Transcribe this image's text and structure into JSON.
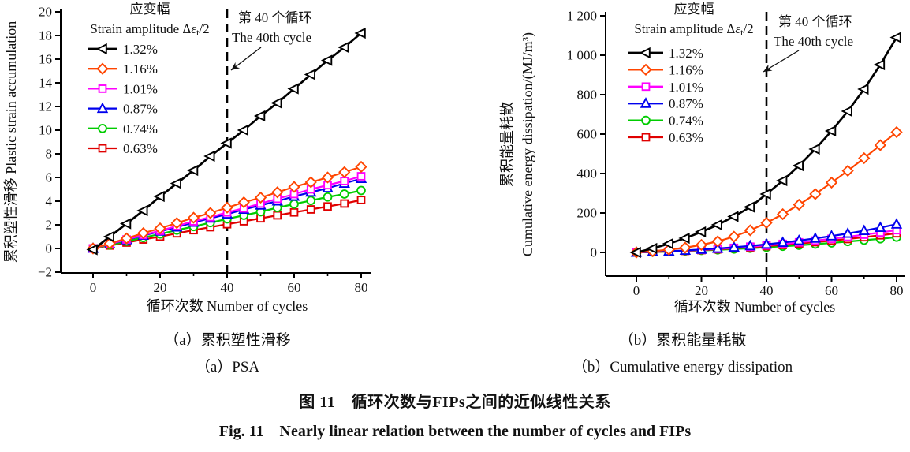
{
  "figure": {
    "caption_zh": "图 11　循环次数与FIPs之间的近似线性关系",
    "caption_en": "Fig. 11　Nearly linear relation between the number of cycles and FIPs"
  },
  "legend": {
    "title_zh": "应变幅",
    "subtitle_pre": "Strain amplitude Δ",
    "subtitle_epsilon": "ε",
    "subtitle_subscript": "t",
    "subtitle_suffix": "/2",
    "entries": [
      "1.32%",
      "1.16%",
      "1.01%",
      "0.87%",
      "0.74%",
      "0.63%"
    ]
  },
  "annotation": {
    "line_label_zh": "第 40 个循环",
    "line_label_en": "The 40th cycle",
    "cycle": 40
  },
  "colors": {
    "s132": "#000000",
    "s116": "#ff4500",
    "s101": "#ff00ff",
    "s087": "#0000ee",
    "s074": "#00cc00",
    "s063": "#e00000"
  },
  "chart_data": [
    {
      "type": "line",
      "panel": "a",
      "caption_zh": "（a）累积塑性滑移",
      "caption_en": "（a）PSA",
      "xlabel": "循环次数 Number of cycles",
      "ylabel_lines": [
        "累积塑性滑移 Plastic strain accumulation"
      ],
      "xlim": [
        -10,
        83
      ],
      "ylim": [
        -2.2,
        20.4
      ],
      "xticks": [
        0,
        20,
        40,
        60,
        80
      ],
      "xminor": [
        10,
        30,
        50,
        70
      ],
      "yticks": [
        -2,
        0,
        2,
        4,
        6,
        8,
        10,
        12,
        14,
        16,
        18,
        20
      ],
      "ytick_labels": [
        "−2",
        "0",
        "2",
        "4",
        "6",
        "8",
        "10",
        "12",
        "14",
        "16",
        "18",
        "20"
      ],
      "grid": false,
      "legend_position": "upper-left",
      "annotation_x": 40,
      "x": [
        0,
        5,
        10,
        15,
        20,
        25,
        30,
        35,
        40,
        45,
        50,
        55,
        60,
        65,
        70,
        75,
        80
      ],
      "series": [
        {
          "name": "1.32%",
          "color": "#000000",
          "marker": "triangle-left",
          "values": [
            -0.1,
            1.0,
            2.1,
            3.2,
            4.4,
            5.5,
            6.6,
            7.8,
            8.9,
            10.0,
            11.2,
            12.3,
            13.5,
            14.7,
            15.9,
            17.0,
            18.2
          ]
        },
        {
          "name": "1.16%",
          "color": "#ff4500",
          "marker": "diamond",
          "values": [
            0,
            0.42,
            0.85,
            1.3,
            1.7,
            2.15,
            2.6,
            3.0,
            3.45,
            3.9,
            4.3,
            4.75,
            5.2,
            5.6,
            6.0,
            6.45,
            6.9
          ]
        },
        {
          "name": "1.01%",
          "color": "#ff00ff",
          "marker": "square",
          "values": [
            0,
            0.38,
            0.76,
            1.14,
            1.5,
            1.9,
            2.3,
            2.65,
            3.05,
            3.4,
            3.8,
            4.2,
            4.6,
            5.0,
            5.35,
            5.7,
            6.1
          ]
        },
        {
          "name": "0.87%",
          "color": "#0000ee",
          "marker": "triangle-up",
          "values": [
            0,
            0.37,
            0.73,
            1.1,
            1.45,
            1.8,
            2.2,
            2.55,
            2.9,
            3.3,
            3.65,
            4.0,
            4.4,
            4.75,
            5.1,
            5.5,
            5.9
          ]
        },
        {
          "name": "0.74%",
          "color": "#00cc00",
          "marker": "circle",
          "values": [
            0,
            0.3,
            0.6,
            0.92,
            1.22,
            1.55,
            1.85,
            2.18,
            2.5,
            2.8,
            3.1,
            3.45,
            3.75,
            4.05,
            4.35,
            4.6,
            4.9
          ]
        },
        {
          "name": "0.63%",
          "color": "#e00000",
          "marker": "square",
          "values": [
            0,
            0.25,
            0.5,
            0.76,
            1.0,
            1.28,
            1.55,
            1.8,
            2.05,
            2.3,
            2.55,
            2.8,
            3.05,
            3.3,
            3.55,
            3.8,
            4.1
          ]
        }
      ],
      "draw_order": [
        5,
        4,
        3,
        2,
        1,
        0
      ]
    },
    {
      "type": "line",
      "panel": "b",
      "caption_zh": "（b）累积能量耗散",
      "caption_en": "（b）Cumulative energy dissipation",
      "xlabel": "循环次数 Number of cycles",
      "ylabel_lines": [
        "累积能量耗散",
        "Cumulative energy dissipation/(MJ/m³)"
      ],
      "xlim": [
        -10,
        83
      ],
      "ylim": [
        -120,
        1250
      ],
      "xticks": [
        0,
        20,
        40,
        60,
        80
      ],
      "xminor": [
        10,
        30,
        50,
        70
      ],
      "yticks": [
        0,
        200,
        400,
        600,
        800,
        1000,
        1200
      ],
      "ytick_labels": [
        "0",
        "200",
        "400",
        "600",
        "800",
        "1 000",
        "1 200"
      ],
      "grid": false,
      "legend_position": "upper-left",
      "annotation_x": 40,
      "x": [
        0,
        5,
        10,
        15,
        20,
        25,
        30,
        35,
        40,
        45,
        50,
        55,
        60,
        65,
        70,
        75,
        80
      ],
      "series": [
        {
          "name": "1.32%",
          "color": "#000000",
          "marker": "triangle-left",
          "values": [
            0,
            20,
            44,
            72,
            104,
            140,
            182,
            230,
            296,
            364,
            440,
            524,
            616,
            716,
            828,
            952,
            1090
          ]
        },
        {
          "name": "1.16%",
          "color": "#ff4500",
          "marker": "diamond",
          "values": [
            0,
            6,
            14,
            24,
            38,
            56,
            80,
            112,
            150,
            194,
            242,
            296,
            354,
            414,
            478,
            544,
            610
          ]
        },
        {
          "name": "1.01%",
          "color": "#ff00ff",
          "marker": "square",
          "values": [
            0,
            3,
            6,
            9,
            13,
            18,
            23,
            29,
            36,
            43,
            51,
            60,
            69,
            79,
            90,
            101,
            113
          ]
        },
        {
          "name": "0.87%",
          "color": "#0000ee",
          "marker": "triangle-up",
          "values": [
            0,
            3,
            6,
            10,
            15,
            20,
            26,
            33,
            41,
            50,
            60,
            71,
            83,
            96,
            110,
            126,
            143
          ]
        },
        {
          "name": "0.74%",
          "color": "#00cc00",
          "marker": "circle",
          "values": [
            0,
            2,
            4,
            7,
            10,
            13,
            17,
            21,
            26,
            31,
            36,
            42,
            48,
            55,
            62,
            69,
            77
          ]
        },
        {
          "name": "0.63%",
          "color": "#e00000",
          "marker": "square",
          "values": [
            0,
            2,
            5,
            8,
            12,
            16,
            21,
            26,
            32,
            38,
            45,
            52,
            60,
            68,
            77,
            87,
            97
          ]
        }
      ],
      "draw_order": [
        4,
        5,
        2,
        3,
        1,
        0
      ]
    }
  ]
}
